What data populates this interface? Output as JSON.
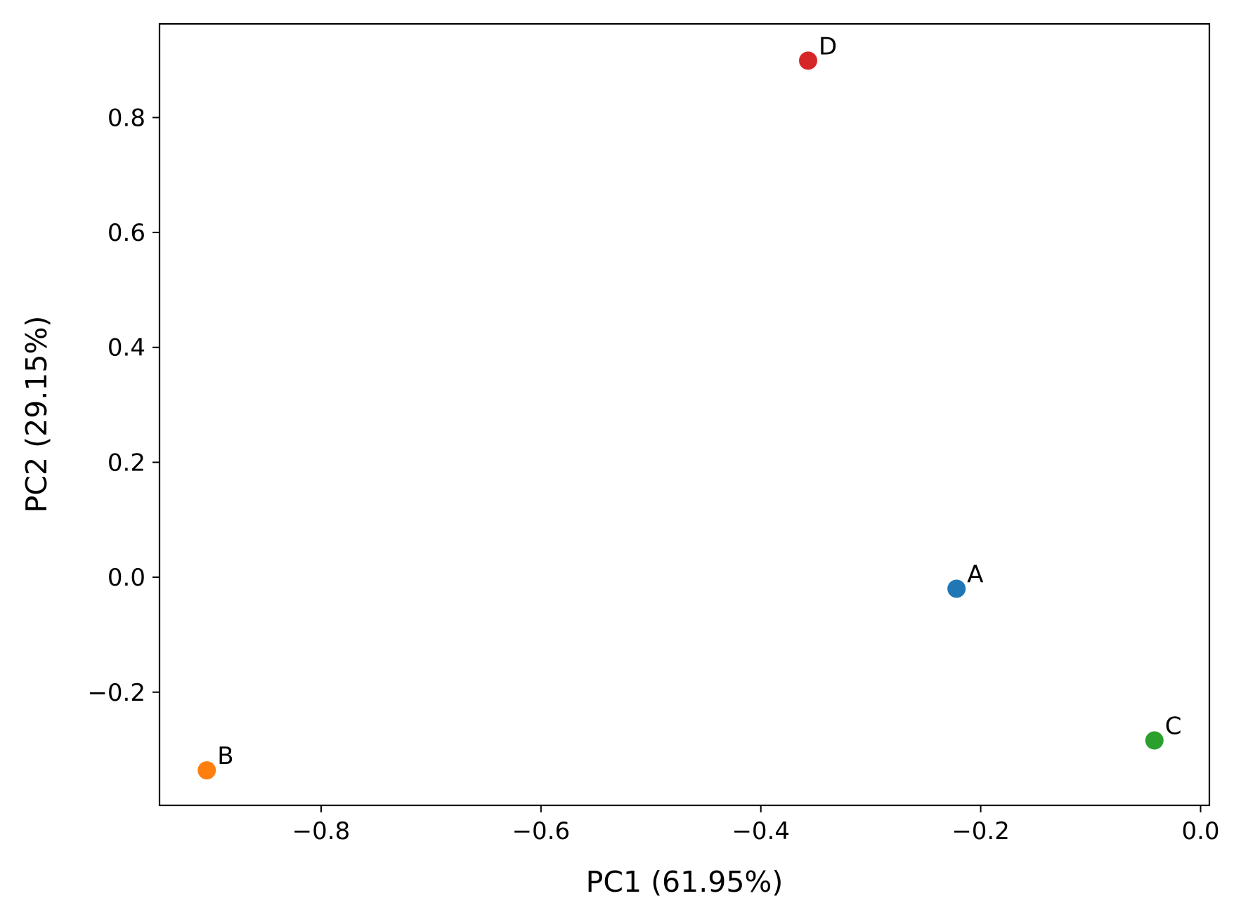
{
  "chart_data": {
    "type": "scatter",
    "xlabel": "PC1 (61.95%)",
    "ylabel": "PC2 (29.15%)",
    "xlim": [
      -0.947,
      0.008
    ],
    "ylim": [
      -0.397,
      0.963
    ],
    "xticks": [
      -0.8,
      -0.6,
      -0.4,
      -0.2,
      0.0
    ],
    "xtick_labels": [
      "−0.8",
      "−0.6",
      "−0.4",
      "−0.2",
      "0.0"
    ],
    "yticks": [
      -0.2,
      0.0,
      0.2,
      0.4,
      0.6,
      0.8
    ],
    "ytick_labels": [
      "−0.2",
      "0.0",
      "0.2",
      "0.4",
      "0.6",
      "0.8"
    ],
    "grid": false,
    "points": [
      {
        "label": "A",
        "x": -0.222,
        "y": -0.02,
        "color": "#1f77b4"
      },
      {
        "label": "B",
        "x": -0.904,
        "y": -0.336,
        "color": "#ff7f0e"
      },
      {
        "label": "C",
        "x": -0.042,
        "y": -0.284,
        "color": "#2ca02c"
      },
      {
        "label": "D",
        "x": -0.357,
        "y": 0.899,
        "color": "#d62728"
      }
    ]
  }
}
